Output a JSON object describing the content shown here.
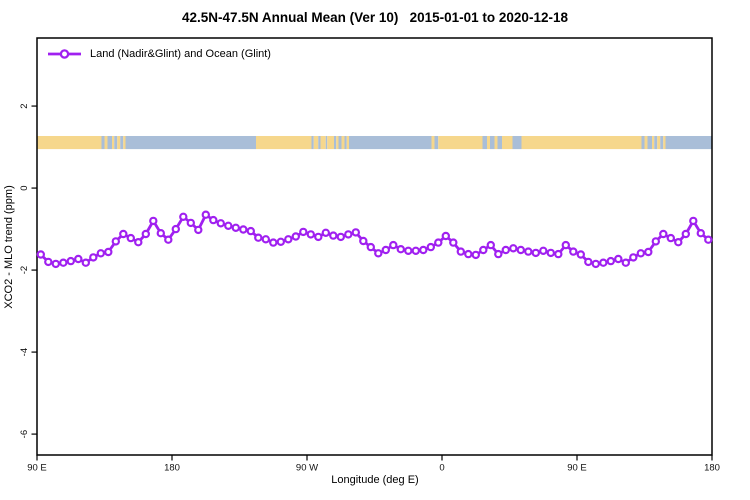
{
  "chart_data": {
    "type": "line",
    "title": "42.5N-47.5N Annual Mean (Ver 10)   2015-01-01 to 2020-12-18",
    "xlabel": "Longitude (deg E)",
    "ylabel": "XCO2 - MLO trend (ppm)",
    "xlim": [
      90,
      540
    ],
    "ylim": [
      -6.51,
      3.66
    ],
    "grid": false,
    "legend_position": "top-left",
    "x_ticks": [
      {
        "value": 90,
        "label": "90 E"
      },
      {
        "value": 180,
        "label": "180"
      },
      {
        "value": 270,
        "label": "90 W"
      },
      {
        "value": 360,
        "label": "0"
      },
      {
        "value": 450,
        "label": "90 E"
      },
      {
        "value": 540,
        "label": "180"
      }
    ],
    "y_ticks": [
      {
        "value": 2,
        "label": "2"
      },
      {
        "value": 0,
        "label": "0"
      },
      {
        "value": -2,
        "label": "-2"
      },
      {
        "value": -4,
        "label": "-4"
      },
      {
        "value": -6,
        "label": "-6"
      }
    ],
    "series": [
      {
        "name": "Land (Nadir&Glint) and Ocean (Glint)",
        "color": "#A020F0",
        "marker": "open-circle",
        "x": [
          92.5,
          97.5,
          102.5,
          107.5,
          112.5,
          117.5,
          122.5,
          127.5,
          132.5,
          137.5,
          142.5,
          147.5,
          152.5,
          157.5,
          162.5,
          167.5,
          172.5,
          177.5,
          182.5,
          187.5,
          192.5,
          197.5,
          202.5,
          207.5,
          212.5,
          217.5,
          222.5,
          227.5,
          232.5,
          237.5,
          242.5,
          247.5,
          252.5,
          257.5,
          262.5,
          267.5,
          272.5,
          277.5,
          282.5,
          287.5,
          292.5,
          297.5,
          302.5,
          307.5,
          312.5,
          317.5,
          322.5,
          327.5,
          332.5,
          337.5,
          342.5,
          347.5,
          352.5,
          357.5,
          362.5,
          367.5,
          372.5,
          377.5,
          382.5,
          387.5,
          392.5,
          397.5,
          402.5,
          407.5,
          412.5,
          417.5,
          422.5,
          427.5,
          432.5,
          437.5,
          442.5,
          447.5,
          452.5,
          457.5,
          462.5,
          467.5,
          472.5,
          477.5,
          482.5,
          487.5,
          492.5,
          497.5,
          502.5,
          507.5,
          512.5,
          517.5,
          522.5,
          527.5,
          532.5,
          537.5
        ],
        "y": [
          -1.62,
          -1.8,
          -1.85,
          -1.82,
          -1.78,
          -1.73,
          -1.82,
          -1.69,
          -1.59,
          -1.56,
          -1.3,
          -1.12,
          -1.22,
          -1.32,
          -1.12,
          -0.8,
          -1.1,
          -1.26,
          -1.0,
          -0.7,
          -0.85,
          -1.02,
          -0.65,
          -0.78,
          -0.86,
          -0.92,
          -0.97,
          -1.01,
          -1.05,
          -1.21,
          -1.25,
          -1.33,
          -1.31,
          -1.25,
          -1.18,
          -1.07,
          -1.13,
          -1.19,
          -1.09,
          -1.16,
          -1.19,
          -1.13,
          -1.08,
          -1.29,
          -1.44,
          -1.59,
          -1.51,
          -1.39,
          -1.49,
          -1.53,
          -1.53,
          -1.51,
          -1.44,
          -1.33,
          -1.17,
          -1.33,
          -1.55,
          -1.61,
          -1.63,
          -1.51,
          -1.39,
          -1.61,
          -1.51,
          -1.47,
          -1.51,
          -1.55,
          -1.58,
          -1.53,
          -1.58,
          -1.61,
          -1.39,
          -1.55,
          -1.62,
          -1.8,
          -1.85,
          -1.82,
          -1.78,
          -1.73,
          -1.82,
          -1.69,
          -1.59,
          -1.56,
          -1.3,
          -1.12,
          -1.22,
          -1.32,
          -1.12,
          -0.8,
          -1.1,
          -1.26
        ]
      }
    ],
    "map_band": {
      "y_range": [
        0.95,
        1.27
      ],
      "land_color": "#F6D78C",
      "ocean_color": "#A9BED8",
      "segments": [
        [
          90,
          133,
          "land"
        ],
        [
          133,
          135,
          "ocean"
        ],
        [
          135,
          137,
          "land"
        ],
        [
          137,
          140,
          "ocean"
        ],
        [
          140,
          141.5,
          "land"
        ],
        [
          141.5,
          143.5,
          "ocean"
        ],
        [
          143.5,
          145.5,
          "land"
        ],
        [
          145.5,
          147.5,
          "ocean"
        ],
        [
          147.5,
          149,
          "land"
        ],
        [
          149,
          236,
          "ocean"
        ],
        [
          236,
          273,
          "land"
        ],
        [
          273,
          274.5,
          "ocean"
        ],
        [
          274.5,
          277.5,
          "land"
        ],
        [
          277.5,
          279,
          "ocean"
        ],
        [
          279,
          282.5,
          "land"
        ],
        [
          282.5,
          283.5,
          "ocean"
        ],
        [
          283.5,
          288,
          "land"
        ],
        [
          288,
          289.5,
          "ocean"
        ],
        [
          289.5,
          291,
          "land"
        ],
        [
          291,
          293,
          "ocean"
        ],
        [
          293,
          295,
          "land"
        ],
        [
          295,
          296.5,
          "ocean"
        ],
        [
          296.5,
          298,
          "land"
        ],
        [
          298,
          353,
          "ocean"
        ],
        [
          353,
          355,
          "land"
        ],
        [
          355,
          357.5,
          "ocean"
        ],
        [
          357.5,
          387,
          "land"
        ],
        [
          387,
          390,
          "ocean"
        ],
        [
          390,
          392,
          "land"
        ],
        [
          392,
          395,
          "ocean"
        ],
        [
          395,
          397,
          "land"
        ],
        [
          397,
          400,
          "ocean"
        ],
        [
          400,
          407,
          "land"
        ],
        [
          407,
          413,
          "ocean"
        ],
        [
          413,
          493,
          "land"
        ],
        [
          493,
          495,
          "ocean"
        ],
        [
          495,
          497,
          "land"
        ],
        [
          497,
          500,
          "ocean"
        ],
        [
          500,
          501.5,
          "land"
        ],
        [
          501.5,
          503.5,
          "ocean"
        ],
        [
          503.5,
          505.5,
          "land"
        ],
        [
          505.5,
          507.5,
          "ocean"
        ],
        [
          507.5,
          509,
          "land"
        ],
        [
          509,
          540,
          "ocean"
        ]
      ]
    }
  }
}
